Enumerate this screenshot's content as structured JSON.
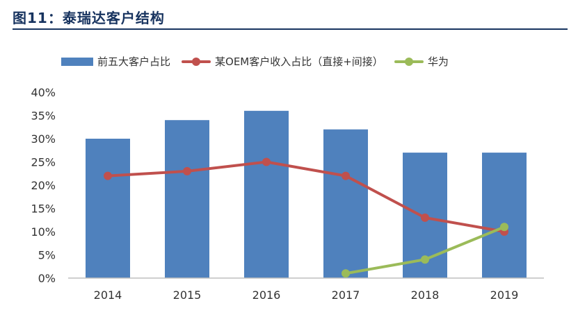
{
  "header": {
    "title": "图11：泰瑞达客户结构"
  },
  "colors": {
    "bar": "#4f81bd",
    "oem": "#c0504d",
    "huawei": "#9bbb59",
    "axis": "#bfbfbf",
    "title": "#17335f"
  },
  "chart_data": {
    "type": "bar",
    "categories": [
      "2014",
      "2015",
      "2016",
      "2017",
      "2018",
      "2019"
    ],
    "ylim": [
      0,
      40
    ],
    "yticks": [
      "0%",
      "5%",
      "10%",
      "15%",
      "20%",
      "25%",
      "30%",
      "35%",
      "40%"
    ],
    "grid": false,
    "legend_position": "top",
    "series": [
      {
        "name": "前五大客户占比",
        "kind": "bar",
        "values": [
          30,
          34,
          36,
          32,
          27,
          27
        ]
      },
      {
        "name": "某OEM客户收入占比（直接+间接）",
        "kind": "line",
        "values": [
          22,
          23,
          25,
          22,
          13,
          10
        ]
      },
      {
        "name": "华为",
        "kind": "line",
        "values": [
          null,
          null,
          null,
          1,
          4,
          11
        ]
      }
    ]
  }
}
